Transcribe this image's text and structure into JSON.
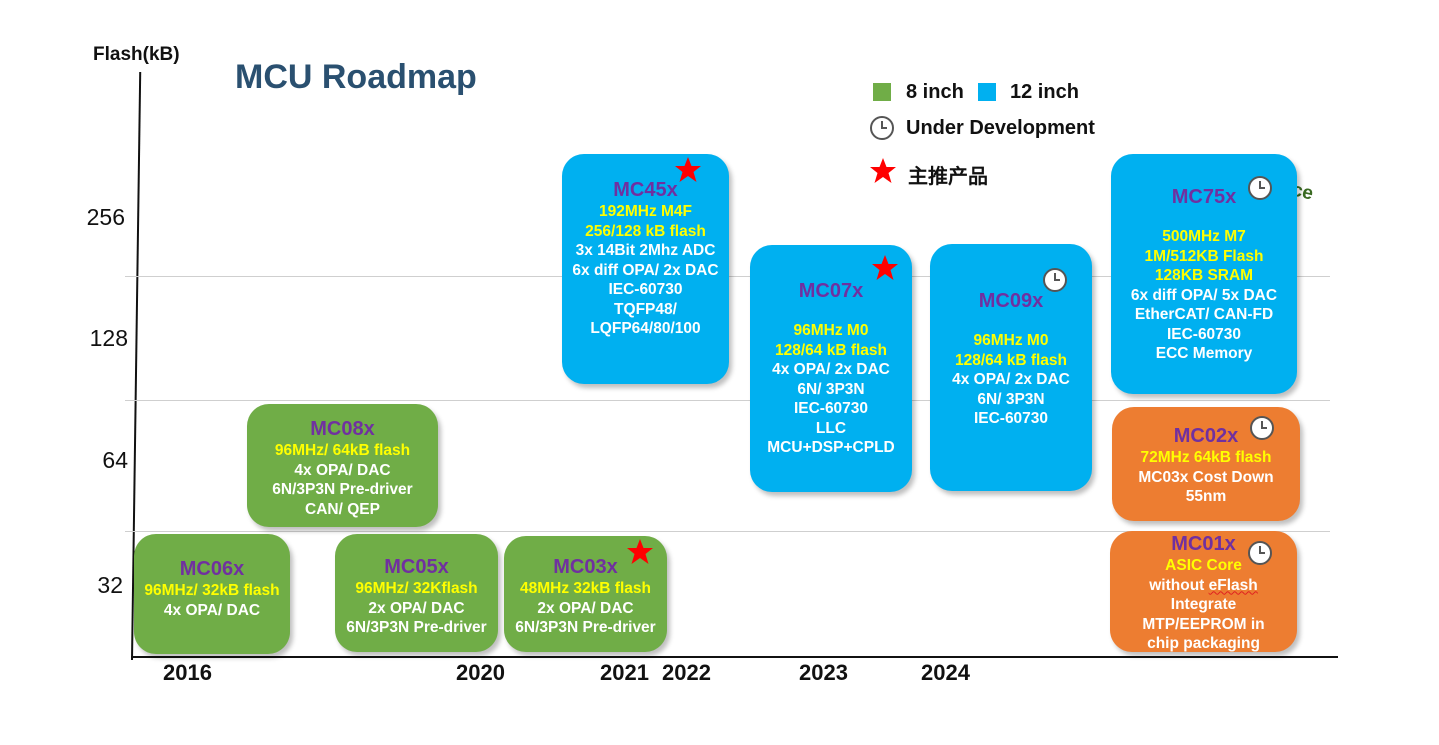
{
  "title": "MCU Roadmap",
  "y_axis_title": "Flash(kB)",
  "y_ticks": [
    "256",
    "128",
    "64",
    "32"
  ],
  "x_ticks": [
    "2016",
    "2020",
    "2021",
    "2022",
    "2023",
    "2024"
  ],
  "legend": {
    "green_label": "8 inch",
    "blue_label": "12 inch",
    "dev_label": "Under Development",
    "star_label": "主推产品",
    "green_color": "#70ad47",
    "blue_color": "#00b0f0",
    "orange_color": "#ed7d31"
  },
  "performance_label": "Performance",
  "products": {
    "mc06": {
      "name": "MC06x",
      "l1": "96MHz/ 32kB flash",
      "l2": "4x OPA/ DAC"
    },
    "mc08": {
      "name": "MC08x",
      "l1": "96MHz/ 64kB flash",
      "l2": "4x OPA/ DAC",
      "l3": "6N/3P3N Pre-driver",
      "l4": "CAN/ QEP"
    },
    "mc05": {
      "name": "MC05x",
      "l1": "96MHz/ 32Kflash",
      "l2": "2x OPA/ DAC",
      "l3": "6N/3P3N Pre-driver"
    },
    "mc03": {
      "name": "MC03x",
      "l1": "48MHz 32kB flash",
      "l2": "2x OPA/ DAC",
      "l3": "6N/3P3N Pre-driver"
    },
    "mc45": {
      "name": "MC45x",
      "l1": "192MHz M4F",
      "l2": "256/128 kB flash",
      "l3": "3x 14Bit 2Mhz ADC",
      "l4": "6x diff OPA/ 2x DAC",
      "l5": "IEC-60730",
      "l6": "TQFP48/",
      "l7": "LQFP64/80/100"
    },
    "mc07": {
      "name": "MC07x",
      "l1": "96MHz M0",
      "l2": "128/64 kB flash",
      "l3": "4x OPA/ 2x DAC",
      "l4": "6N/ 3P3N",
      "l5": "IEC-60730",
      "l6": "LLC",
      "l7": "MCU+DSP+CPLD"
    },
    "mc09": {
      "name": "MC09x",
      "l1": "96MHz M0",
      "l2": "128/64 kB flash",
      "l3": "4x OPA/ 2x DAC",
      "l4": "6N/ 3P3N",
      "l5": "IEC-60730"
    },
    "mc75": {
      "name": "MC75x",
      "l1": "500MHz M7",
      "l2": "1M/512KB Flash",
      "l3": "128KB SRAM",
      "l4": "6x diff OPA/ 5x DAC",
      "l5": "EtherCAT/ CAN-FD",
      "l6": "IEC-60730",
      "l7": "ECC Memory"
    },
    "mc02": {
      "name": "MC02x",
      "l1": "72MHz 64kB flash",
      "l2": "MC03x Cost Down",
      "l3": "55nm"
    },
    "mc01": {
      "name": "MC01x",
      "l1": "ASIC Core",
      "l2a": "without ",
      "l2b": "eFlash",
      "l3": "Integrate",
      "l4": "MTP/EEPROM in",
      "l5": "chip packaging"
    }
  }
}
